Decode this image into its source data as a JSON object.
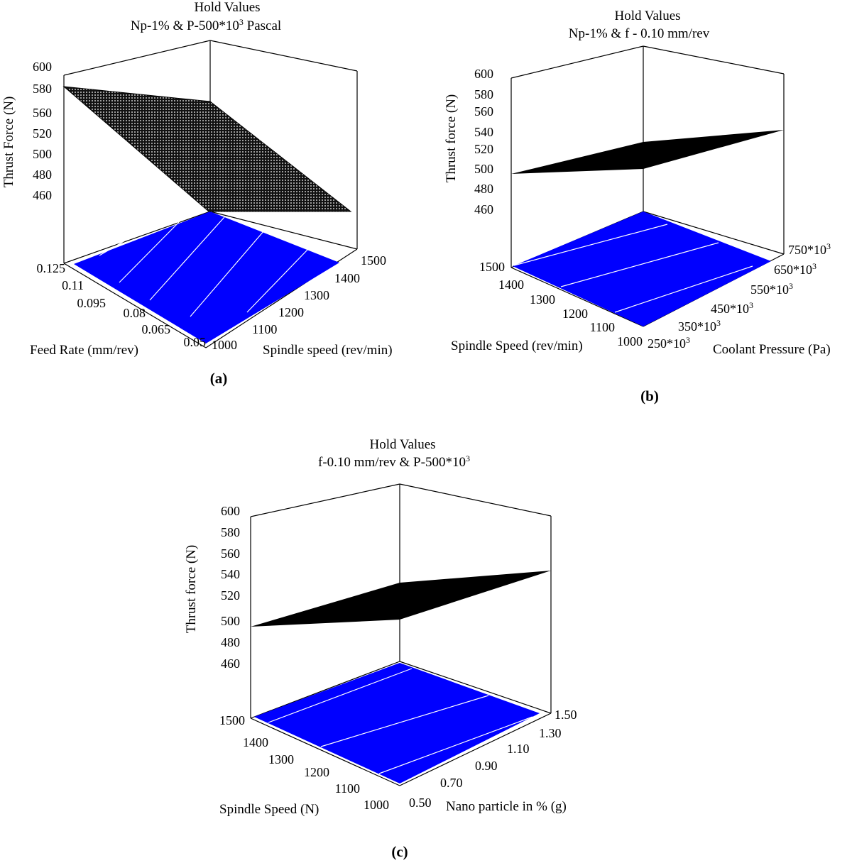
{
  "chart_data": [
    {
      "type": "surface3d",
      "caption": "(a)",
      "title_line1": "Hold Values",
      "title_line2": "Np-1% & P-500*10",
      "title_line2_sup": "3",
      "title_line2_suffix": " Pascal",
      "zlabel": "Thrust Force (N)",
      "xlabel": "Feed Rate (mm/rev)",
      "ylabel": "Spindle speed (rev/min)",
      "z_ticks": [
        "600",
        "580",
        "560",
        "520",
        "500",
        "480",
        "460"
      ],
      "x_ticks": [
        "0.125",
        "0.11",
        "0.095",
        "0.08",
        "0.065",
        "0.05"
      ],
      "y_ticks": [
        "1000",
        "1100",
        "1200",
        "1300",
        "1400",
        "1500"
      ],
      "zlim": [
        460,
        600
      ],
      "surface_corners": [
        {
          "feed": 0.125,
          "spindle": 1000,
          "thrust": 583
        },
        {
          "feed": 0.125,
          "spindle": 1500,
          "thrust": 568
        },
        {
          "feed": 0.05,
          "spindle": 1500,
          "thrust": 460
        },
        {
          "feed": 0.05,
          "spindle": 1000,
          "thrust": 460
        }
      ],
      "surface_color": "#000000",
      "contour_color": "#0000ff"
    },
    {
      "type": "surface3d",
      "caption": "(b)",
      "title_line1": "Hold Values",
      "title_line2": "Np-1% & f - 0.10 mm/rev",
      "zlabel": "Thrust force (N)",
      "xlabel": "Spindle Speed (rev/min)",
      "ylabel": "Coolant Pressure (Pa)",
      "z_ticks": [
        "600",
        "580",
        "560",
        "540",
        "520",
        "500",
        "480",
        "460"
      ],
      "x_ticks": [
        "1500",
        "1400",
        "1300",
        "1200",
        "1100",
        "1000"
      ],
      "y_ticks": [
        {
          "base": "250*10",
          "sup": "3"
        },
        {
          "base": "350*10",
          "sup": "3"
        },
        {
          "base": "450*10",
          "sup": "3"
        },
        {
          "base": "550*10",
          "sup": "3"
        },
        {
          "base": "650*10",
          "sup": "3"
        },
        {
          "base": "750*10",
          "sup": "3"
        }
      ],
      "zlim": [
        460,
        600
      ],
      "surface_color": "#000000",
      "contour_color": "#0000ff"
    },
    {
      "type": "surface3d",
      "caption": "(c)",
      "title_line1": "Hold Values",
      "title_line2": "f-0.10 mm/rev & P-500*10",
      "title_line2_sup": "3",
      "zlabel": "Thrust force (N)",
      "xlabel": "Spindle Speed (N)",
      "ylabel": "Nano particle in % (g)",
      "z_ticks": [
        "600",
        "580",
        "560",
        "540",
        "520",
        "500",
        "480",
        "460"
      ],
      "x_ticks": [
        "1500",
        "1400",
        "1300",
        "1200",
        "1100",
        "1000"
      ],
      "y_ticks": [
        "0.50",
        "0.70",
        "0.90",
        "1.10",
        "1.30",
        "1.50"
      ],
      "zlim": [
        460,
        600
      ],
      "surface_color": "#000000",
      "contour_color": "#0000ff"
    }
  ]
}
